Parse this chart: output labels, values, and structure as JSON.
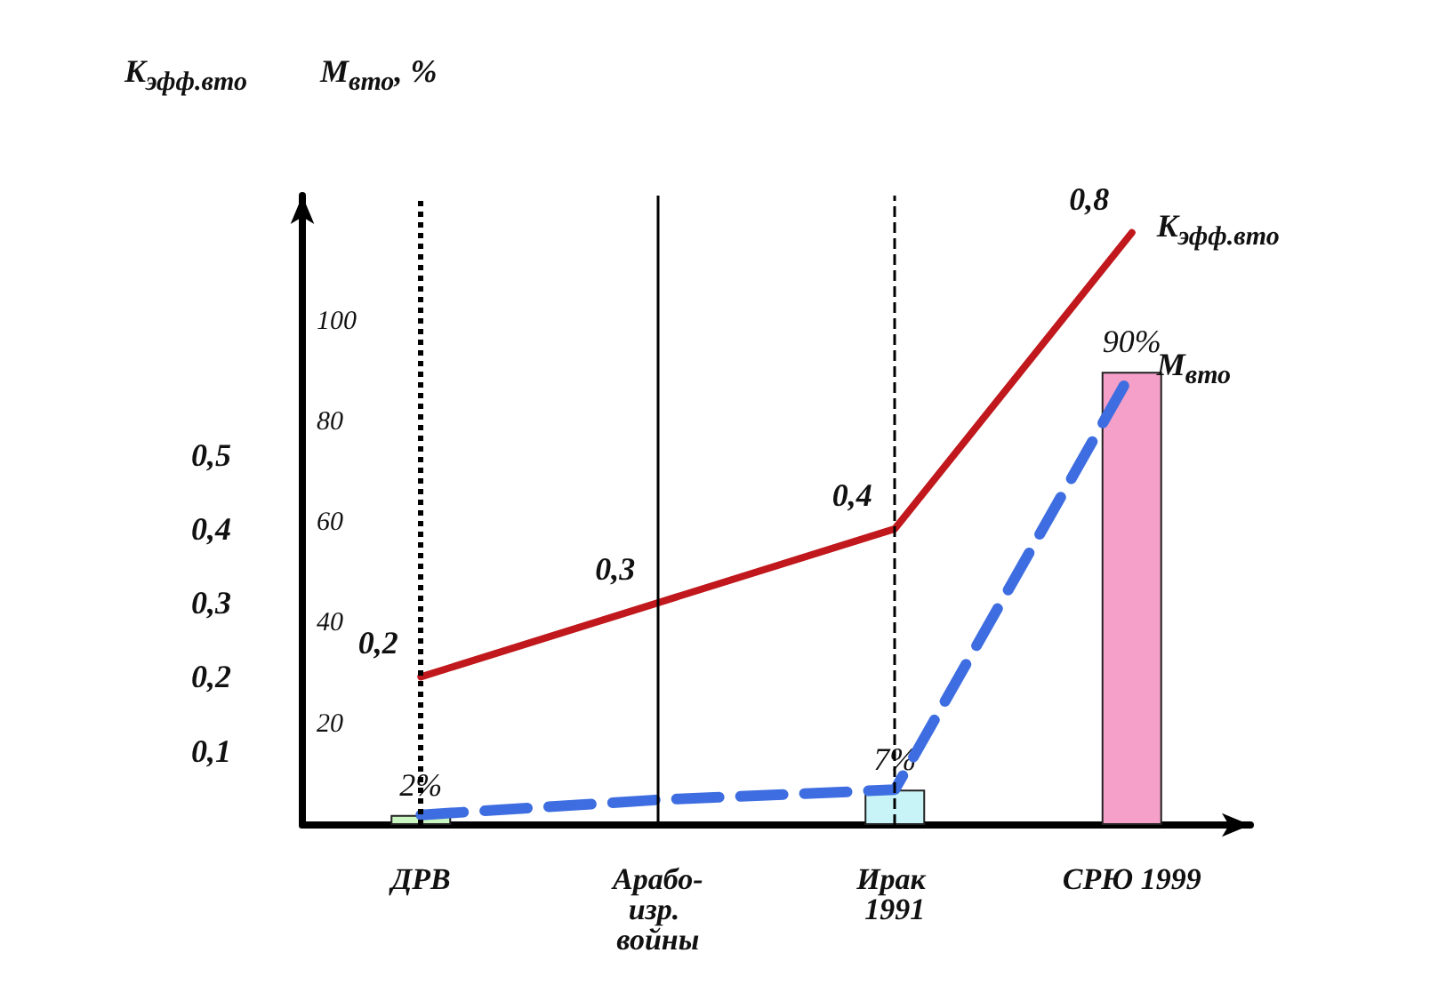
{
  "chart_data": {
    "type": "line",
    "categories": [
      "ДРВ",
      "Арабо-изр. войны",
      "Ирак 1991",
      "СРЮ 1999"
    ],
    "ylabel": "K$_{эфф.вто}$",
    "y2label": "M$_{вто}$, %",
    "ylim": [
      0,
      0.85
    ],
    "yticks": [
      {
        "value": 0.1,
        "label": "0,1"
      },
      {
        "value": 0.2,
        "label": "0,2"
      },
      {
        "value": 0.3,
        "label": "0,3"
      },
      {
        "value": 0.4,
        "label": "0,4"
      },
      {
        "value": 0.5,
        "label": "0,5"
      }
    ],
    "y2lim": [
      0,
      125
    ],
    "y2ticks": [
      20,
      40,
      60,
      80,
      100
    ],
    "series": [
      {
        "name": "K$_{эфф.вто}$",
        "color": "#c0181c",
        "values": [
          0.2,
          0.3,
          0.4,
          0.8
        ],
        "value_labels": [
          "0,2",
          "0,3",
          "0,4",
          "0,8"
        ],
        "line_style": "solid"
      },
      {
        "type": "bar",
        "axis": "y2",
        "colors": [
          "#c8f5c0",
          "#ffffff",
          "#c8f4f8",
          "#f4a0c8"
        ],
        "values": [
          2,
          null,
          7,
          90
        ],
        "value_labels": [
          "2%",
          null,
          "7%",
          "90%"
        ]
      },
      {
        "name": "M$_{вто}$",
        "type": "line",
        "axis": "y2",
        "color": "#3d6de0",
        "values": [
          2,
          5,
          7,
          90
        ],
        "line_style": "dashed"
      }
    ],
    "ref_lines": [
      {
        "axis": "x",
        "value": "ДРВ",
        "line_style": "dotted",
        "color": "#000000"
      },
      {
        "axis": "x",
        "value": "Арабо-изр. войны",
        "line_style": "solid",
        "color": "#000000"
      },
      {
        "axis": "x",
        "value": "Ирак 1991",
        "line_style": "dashed",
        "color": "#000000"
      }
    ],
    "marker": "none",
    "grid": false,
    "legend": false
  }
}
